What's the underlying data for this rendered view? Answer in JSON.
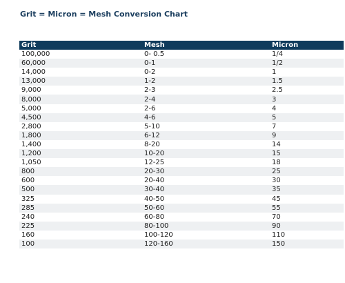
{
  "title": "Grit = Micron = Mesh Conversion Chart",
  "table": {
    "headers": [
      "Grit",
      "Mesh",
      "Micron"
    ],
    "rows": [
      [
        "100,000",
        "0- 0.5",
        "1/4"
      ],
      [
        "60,000",
        "0-1",
        "1/2"
      ],
      [
        "14,000",
        "0-2",
        "1"
      ],
      [
        "13,000",
        "1-2",
        "1.5"
      ],
      [
        "9,000",
        "2-3",
        "2.5"
      ],
      [
        "8,000",
        "2-4",
        "3"
      ],
      [
        "5,000",
        "2-6",
        "4"
      ],
      [
        "4,500",
        "4-6",
        "5"
      ],
      [
        "2,800",
        "5-10",
        "7"
      ],
      [
        "1,800",
        "6-12",
        "9"
      ],
      [
        "1,400",
        "8-20",
        "14"
      ],
      [
        "1,200",
        "10-20",
        "15"
      ],
      [
        "1,050",
        "12-25",
        "18"
      ],
      [
        "800",
        "20-30",
        "25"
      ],
      [
        "600",
        "20-40",
        "30"
      ],
      [
        "500",
        "30-40",
        "35"
      ],
      [
        "325",
        "40-50",
        "45"
      ],
      [
        "285",
        "50-60",
        "55"
      ],
      [
        "240",
        "60-80",
        "70"
      ],
      [
        "225",
        "80-100",
        "90"
      ],
      [
        "160",
        "100-120",
        "110"
      ],
      [
        "100",
        "120-160",
        "150"
      ]
    ]
  },
  "colors": {
    "title": "#1c3f5f",
    "header_bg": "#0f3b5c",
    "header_text": "#ffffff",
    "stripe": "#eef0f2"
  }
}
